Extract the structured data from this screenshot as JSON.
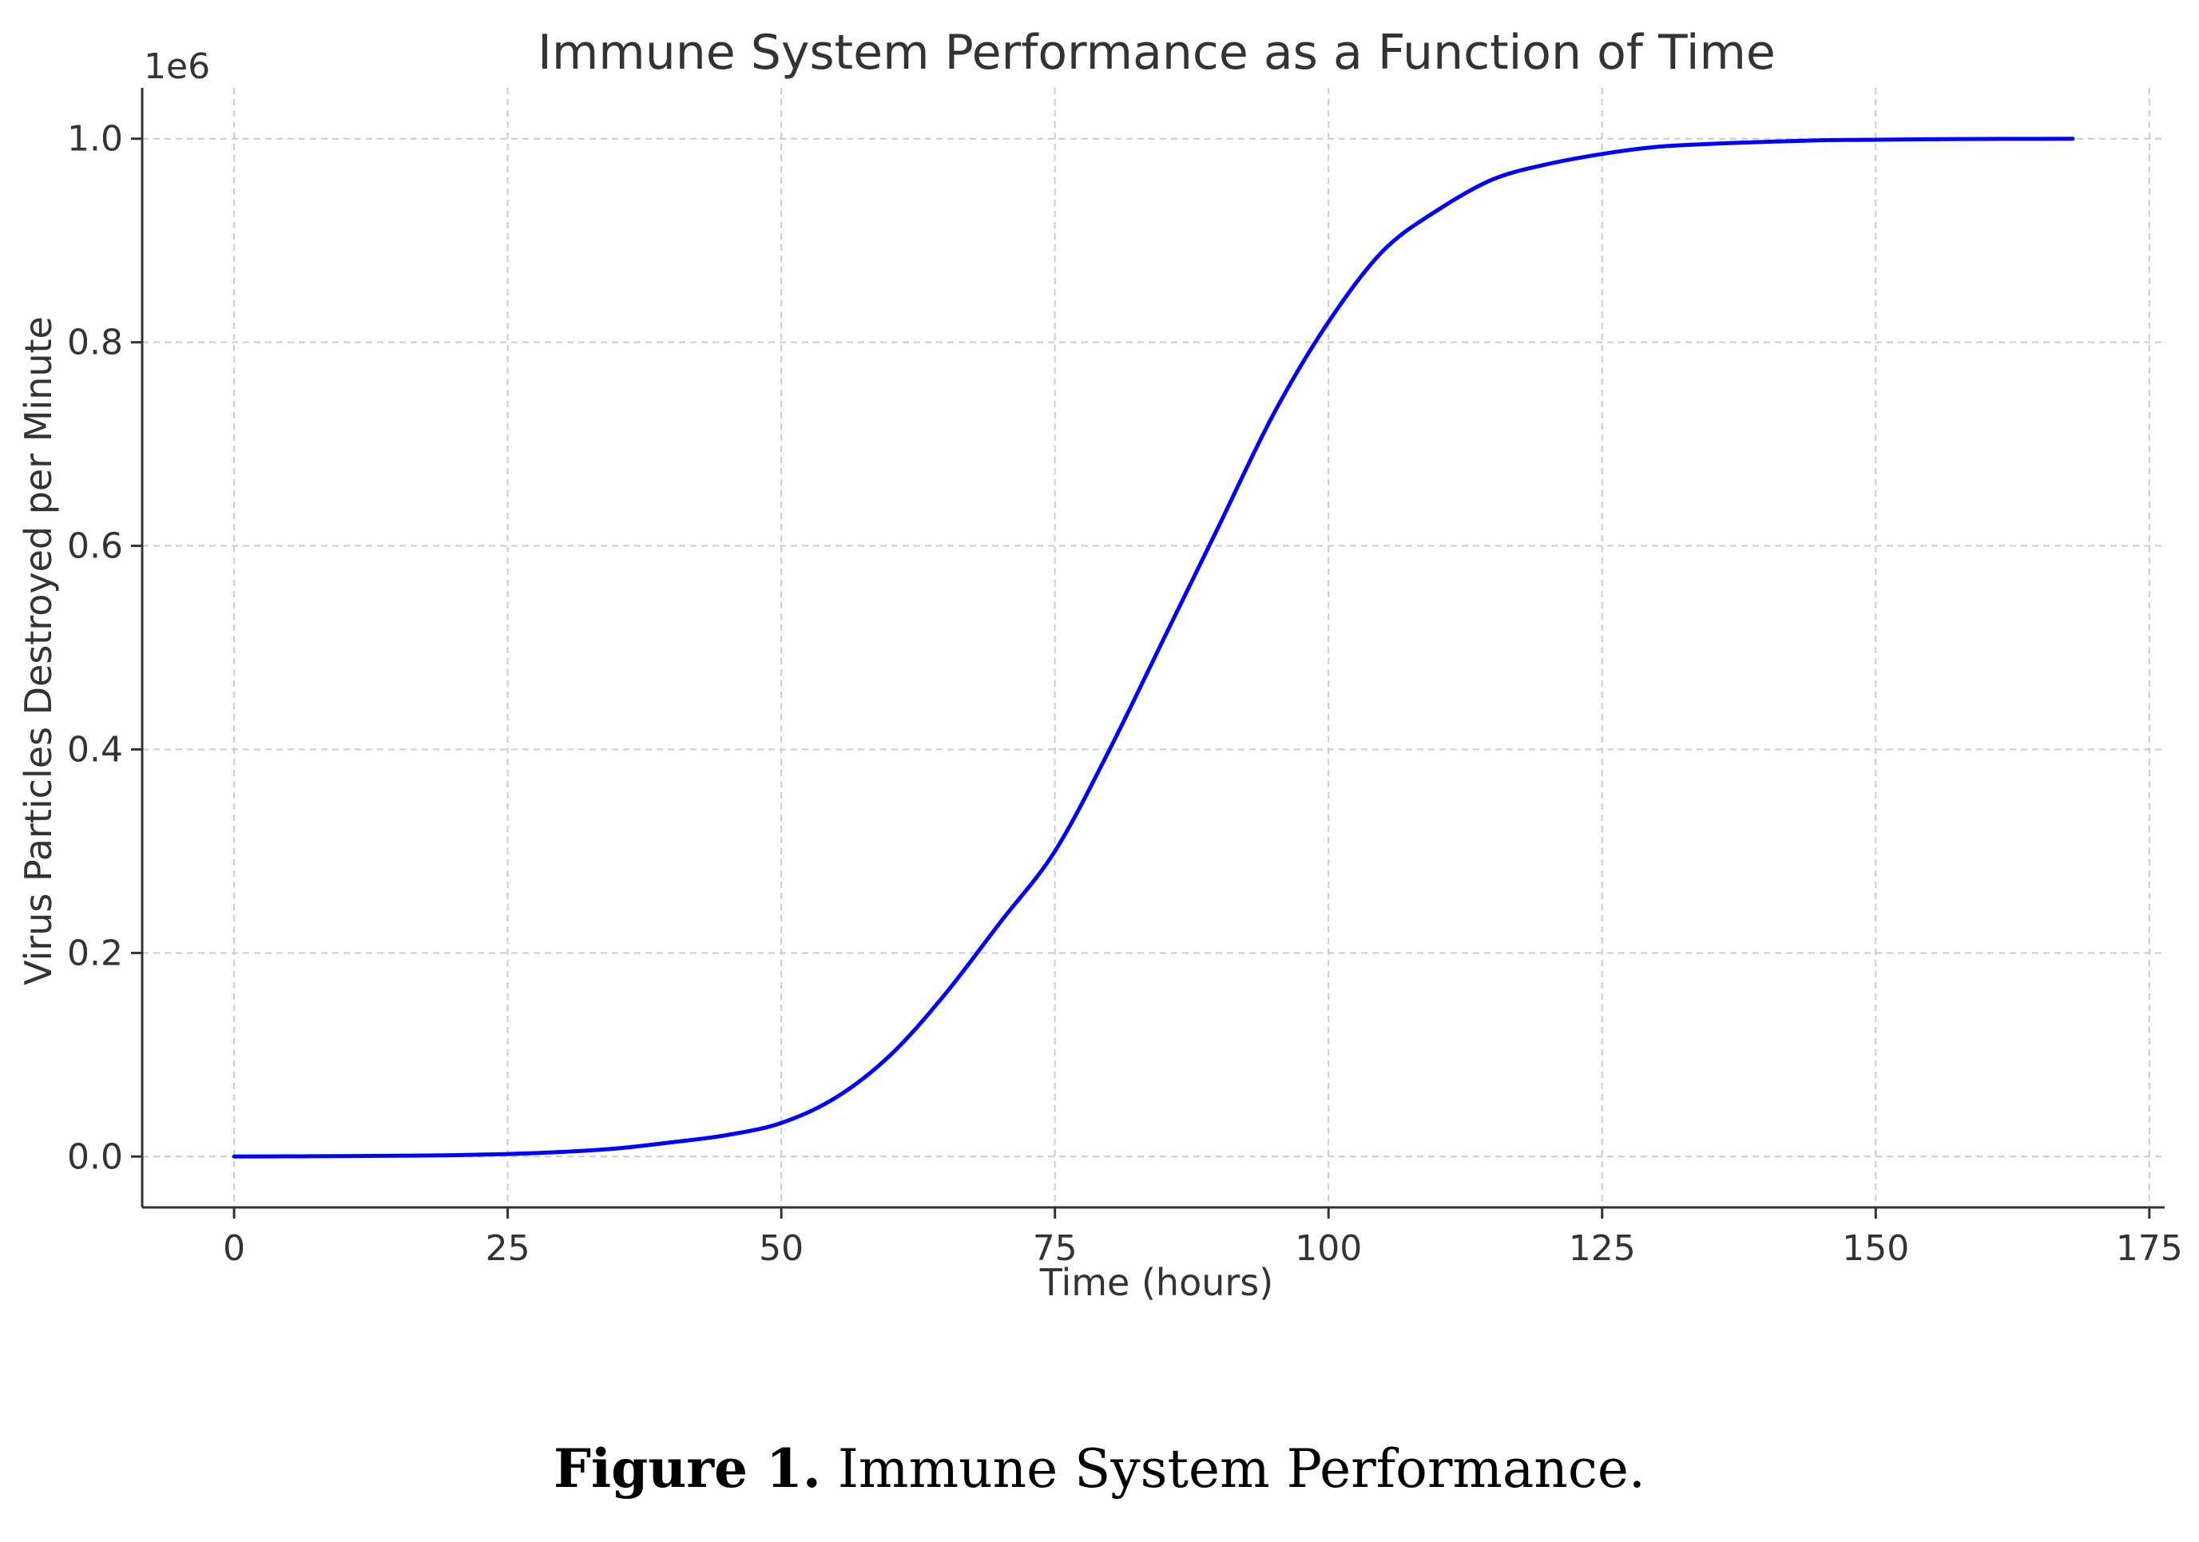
{
  "chart_data": {
    "type": "line",
    "title": "Immune System Performance as a Function of Time",
    "xlabel": "Time (hours)",
    "ylabel": "Virus Particles Destroyed per Minute",
    "y_offset_label": "1e6",
    "xlim": [
      -8.4,
      176.4
    ],
    "ylim": [
      -50000,
      1050000
    ],
    "xticks": [
      0,
      25,
      50,
      75,
      100,
      125,
      150,
      175
    ],
    "xtick_labels": [
      "0",
      "25",
      "50",
      "75",
      "100",
      "125",
      "150",
      "175"
    ],
    "yticks": [
      0,
      200000,
      400000,
      600000,
      800000,
      1000000
    ],
    "ytick_labels": [
      "0.0",
      "0.2",
      "0.4",
      "0.6",
      "0.8",
      "1.0"
    ],
    "grid": true,
    "line_color": "#0000ff",
    "series": [
      {
        "x": [
          0,
          5,
          10,
          15,
          20,
          25,
          30,
          35,
          40,
          45,
          50,
          55,
          60,
          65,
          70,
          75,
          80,
          85,
          90,
          95,
          100,
          105,
          110,
          115,
          120,
          125,
          130,
          135,
          140,
          145,
          150,
          155,
          160,
          165,
          168
        ],
        "values": [
          0,
          200,
          400,
          800,
          1300,
          2500,
          4500,
          8000,
          14000,
          21000,
          33000,
          58000,
          100000,
          160000,
          230000,
          300000,
          400000,
          510000,
          620000,
          730000,
          820000,
          890000,
          930000,
          960000,
          975000,
          985000,
          992000,
          995000,
          997000,
          998500,
          999000,
          999500,
          999800,
          999900,
          1000000
        ]
      }
    ]
  },
  "caption": {
    "label": "Figure 1.",
    "text": " Immune System Performance."
  }
}
